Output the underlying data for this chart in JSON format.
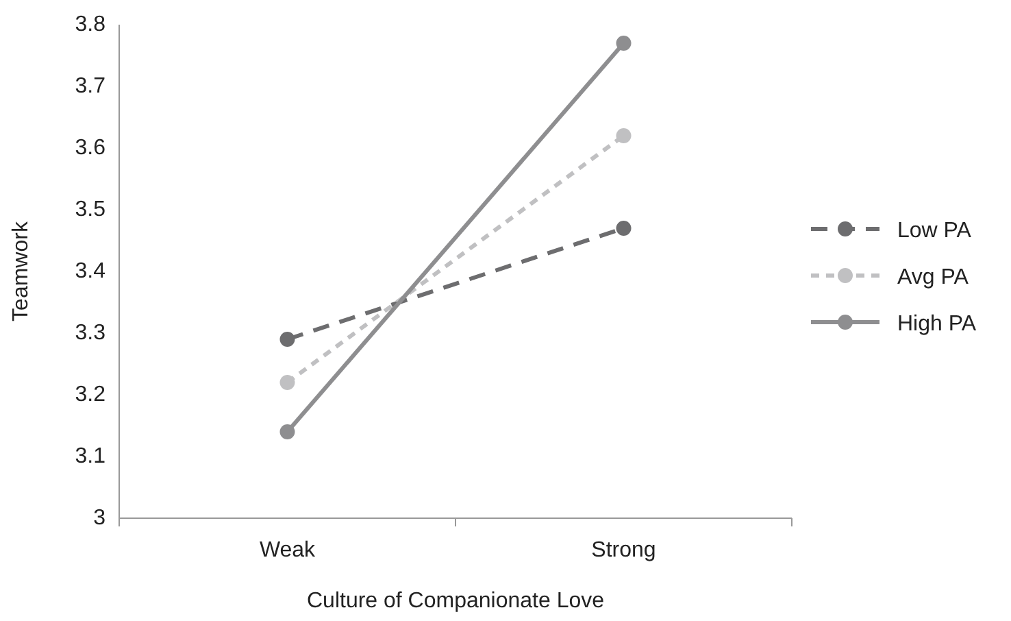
{
  "chart_data": {
    "type": "line",
    "xlabel": "Culture of Companionate Love",
    "ylabel": "Teamwork",
    "categories": [
      "Weak",
      "Strong"
    ],
    "series": [
      {
        "name": "Low PA",
        "color": "#6d6d6f",
        "values": [
          3.29,
          3.47
        ],
        "line_style": "dashed"
      },
      {
        "name": "Avg PA",
        "color": "#c0c0c2",
        "values": [
          3.22,
          3.62
        ],
        "line_style": "dotted"
      },
      {
        "name": "High PA",
        "color": "#8e8e90",
        "values": [
          3.14,
          3.77
        ],
        "line_style": "solid"
      }
    ],
    "ylim": [
      3,
      3.8
    ],
    "yticks": [
      {
        "value": 3,
        "label": "3"
      },
      3.1,
      3.2,
      3.3,
      3.4,
      3.5,
      3.6,
      3.7,
      3.8
    ],
    "grid": false,
    "legend": "right",
    "marker": "circle"
  }
}
